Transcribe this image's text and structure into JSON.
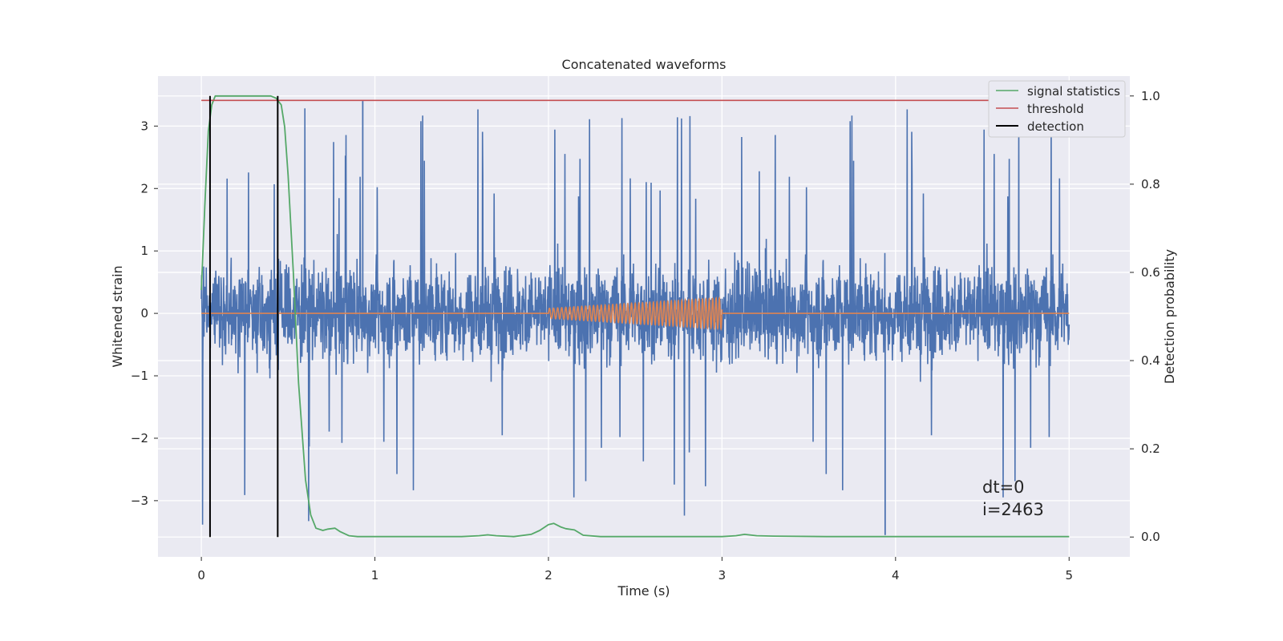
{
  "chart_data": {
    "type": "line",
    "title": "Concatenated waveforms",
    "xlabel": "Time (s)",
    "ylabel": "Whitened strain",
    "y2label": "Detection probability",
    "xlim": [
      -0.25,
      5.35
    ],
    "ylim": [
      -3.9,
      3.8
    ],
    "y2lim": [
      -0.045,
      1.045
    ],
    "x_ticks": [
      0,
      1,
      2,
      3,
      4,
      5
    ],
    "x_tick_labels": [
      "0",
      "1",
      "2",
      "3",
      "4",
      "5"
    ],
    "y_ticks": [
      -3,
      -2,
      -1,
      0,
      1,
      2,
      3
    ],
    "y_tick_labels": [
      "−3",
      "−2",
      "−1",
      "0",
      "1",
      "2",
      "3"
    ],
    "y2_ticks": [
      0.0,
      0.2,
      0.4,
      0.6,
      0.8,
      1.0
    ],
    "y2_tick_labels": [
      "0.0",
      "0.2",
      "0.4",
      "0.6",
      "0.8",
      "1.0"
    ],
    "grid": true,
    "legend_position": "top-right",
    "legend": [
      {
        "label": "signal statistics",
        "color": "#55a868"
      },
      {
        "label": "threshold",
        "color": "#c44e52"
      },
      {
        "label": "detection",
        "color": "#000000"
      }
    ],
    "strain_noise": {
      "color": "#4c72b0",
      "x_range": [
        0,
        5
      ],
      "typical_amplitude": 0.7,
      "peak_amplitude": 3.4,
      "note_points": [
        {
          "x": 0.93,
          "y": 3.4
        },
        {
          "x": 3.94,
          "y": -3.55
        }
      ]
    },
    "injected_signal": {
      "color": "#dd8452",
      "x_range": [
        2.0,
        3.0
      ],
      "amplitude_start": 0.08,
      "amplitude_end": 0.25,
      "cycles": 42
    },
    "signal_statistics": {
      "color": "#55a868",
      "axis": "y2",
      "x": [
        0.0,
        0.02,
        0.04,
        0.06,
        0.08,
        0.12,
        0.2,
        0.3,
        0.4,
        0.43,
        0.46,
        0.48,
        0.5,
        0.53,
        0.56,
        0.6,
        0.63,
        0.66,
        0.7,
        0.73,
        0.77,
        0.8,
        0.85,
        0.9,
        1.0,
        1.2,
        1.5,
        1.6,
        1.65,
        1.7,
        1.8,
        1.9,
        1.95,
        2.0,
        2.03,
        2.07,
        2.1,
        2.15,
        2.2,
        2.3,
        2.5,
        2.8,
        3.0,
        3.08,
        3.13,
        3.2,
        3.3,
        3.6,
        4.0,
        4.5,
        5.0
      ],
      "y": [
        0.56,
        0.75,
        0.92,
        0.98,
        1.0,
        1.0,
        1.0,
        1.0,
        1.0,
        0.995,
        0.98,
        0.93,
        0.82,
        0.6,
        0.35,
        0.13,
        0.05,
        0.02,
        0.015,
        0.018,
        0.02,
        0.012,
        0.003,
        0.001,
        0.001,
        0.001,
        0.001,
        0.003,
        0.005,
        0.003,
        0.001,
        0.006,
        0.015,
        0.028,
        0.031,
        0.023,
        0.019,
        0.016,
        0.004,
        0.001,
        0.001,
        0.001,
        0.001,
        0.003,
        0.006,
        0.003,
        0.002,
        0.001,
        0.001,
        0.001,
        0.001
      ]
    },
    "threshold": {
      "color": "#c44e52",
      "axis": "y2",
      "value": 0.99,
      "x_range": [
        0,
        5
      ]
    },
    "detections": {
      "color": "#000000",
      "x": [
        0.05,
        0.44
      ],
      "y2_range": [
        0.0,
        1.0
      ]
    },
    "annotations": [
      "dt=0",
      "i=2463"
    ]
  }
}
